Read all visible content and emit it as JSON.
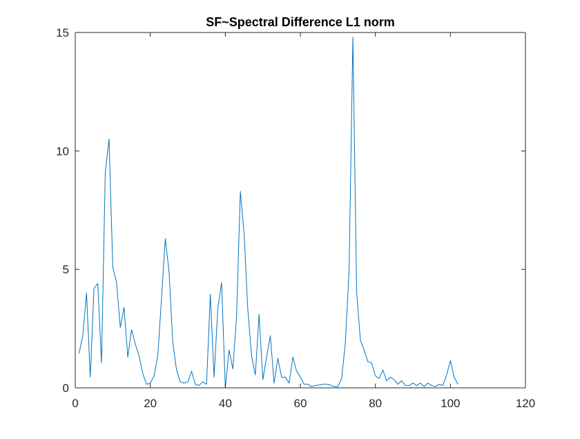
{
  "chart_data": {
    "type": "line",
    "title": "SF~Spectral  Difference L1 norm",
    "xlabel": "",
    "ylabel": "",
    "xlim": [
      0,
      120
    ],
    "ylim": [
      0,
      15
    ],
    "x_ticks": [
      0,
      20,
      40,
      60,
      80,
      100,
      120
    ],
    "y_ticks": [
      0,
      5,
      10,
      15
    ],
    "x_tick_labels": [
      "0",
      "20",
      "40",
      "60",
      "80",
      "100",
      "120"
    ],
    "y_tick_labels": [
      "0",
      "5",
      "10",
      "15"
    ],
    "grid": false,
    "legend": "none",
    "series": [
      {
        "color": "#0072BD",
        "x": [
          1,
          2,
          3,
          4,
          5,
          6,
          7,
          8,
          9,
          10,
          11,
          12,
          13,
          14,
          15,
          16,
          17,
          18,
          19,
          20,
          21,
          22,
          23,
          24,
          25,
          26,
          27,
          28,
          29,
          30,
          31,
          32,
          33,
          34,
          35,
          36,
          37,
          38,
          39,
          40,
          41,
          42,
          43,
          44,
          45,
          46,
          47,
          48,
          49,
          50,
          51,
          52,
          53,
          54,
          55,
          56,
          57,
          58,
          59,
          60,
          61,
          62,
          63,
          64,
          65,
          66,
          67,
          68,
          69,
          70,
          71,
          72,
          73,
          74,
          75,
          76,
          77,
          78,
          79,
          80,
          81,
          82,
          83,
          84,
          85,
          86,
          87,
          88,
          89,
          90,
          91,
          92,
          93,
          94,
          95,
          96,
          97,
          98,
          99,
          100,
          101,
          102
        ],
        "y": [
          1.45,
          2.2,
          4.0,
          0.45,
          4.2,
          4.4,
          1.05,
          9.1,
          10.5,
          5.1,
          4.45,
          2.55,
          3.4,
          1.3,
          2.45,
          1.85,
          1.35,
          0.6,
          0.15,
          0.2,
          0.5,
          1.35,
          3.8,
          6.3,
          4.9,
          1.9,
          0.75,
          0.25,
          0.2,
          0.25,
          0.7,
          0.15,
          0.1,
          0.25,
          0.15,
          3.95,
          0.45,
          3.35,
          4.45,
          0.0,
          1.6,
          0.8,
          3.0,
          8.3,
          6.5,
          3.3,
          1.35,
          0.55,
          3.1,
          0.35,
          1.3,
          2.2,
          0.2,
          1.25,
          0.45,
          0.45,
          0.2,
          1.3,
          0.7,
          0.45,
          0.15,
          0.15,
          0.05,
          0.1,
          0.12,
          0.15,
          0.15,
          0.12,
          0.05,
          0.05,
          0.4,
          1.9,
          5.0,
          14.8,
          4.05,
          2.0,
          1.6,
          1.1,
          1.05,
          0.5,
          0.4,
          0.75,
          0.3,
          0.45,
          0.35,
          0.15,
          0.3,
          0.1,
          0.1,
          0.2,
          0.1,
          0.2,
          0.05,
          0.2,
          0.1,
          0.05,
          0.15,
          0.1,
          0.55,
          1.15,
          0.45,
          0.15
        ]
      }
    ]
  },
  "colors": {
    "line": "#0072BD",
    "axis": "#262626",
    "title": "#000000"
  }
}
